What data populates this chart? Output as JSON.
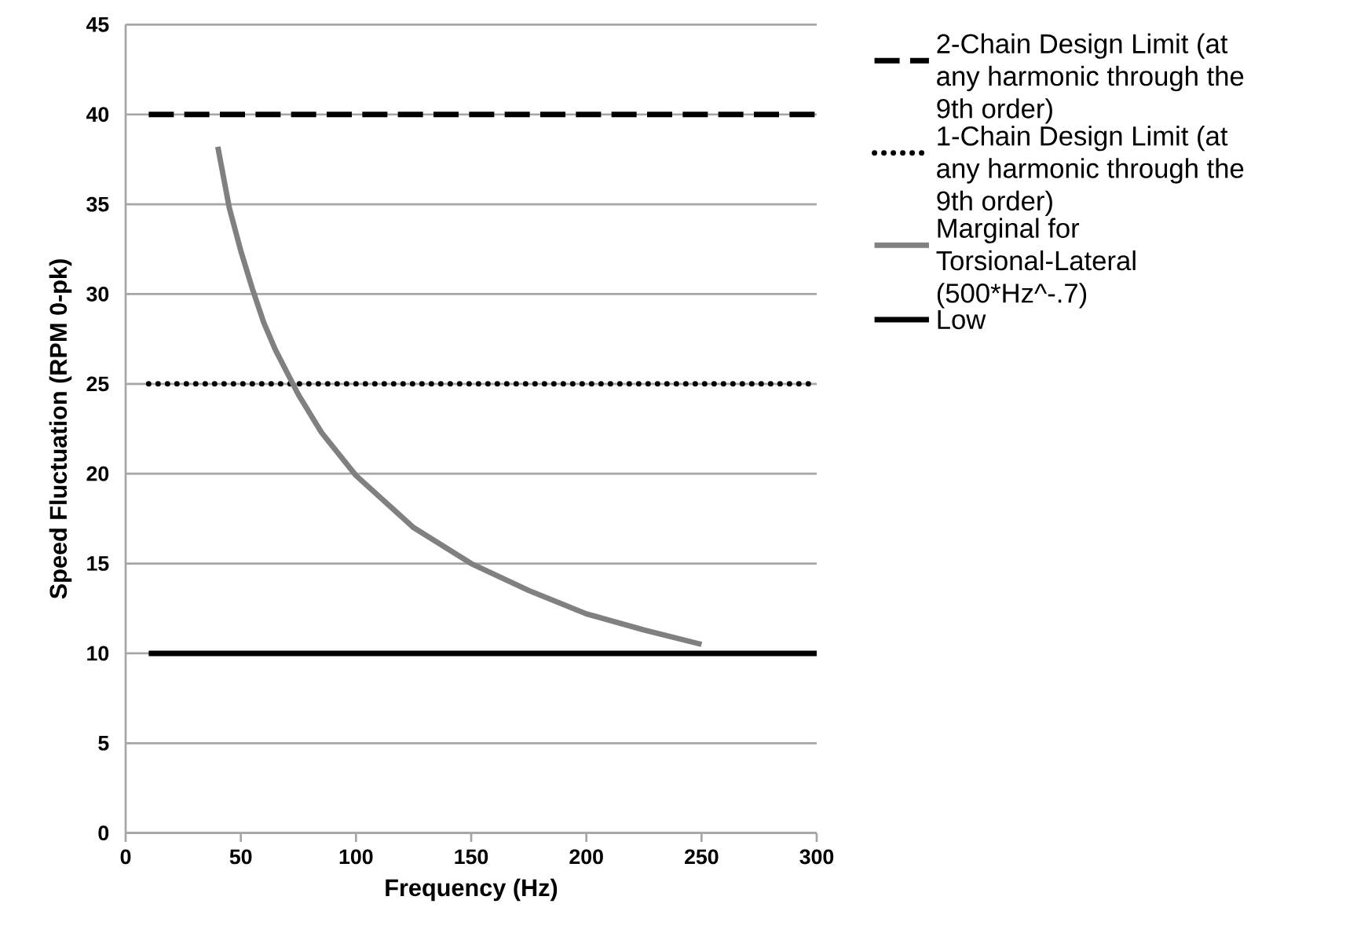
{
  "chart_data": {
    "type": "line",
    "xlabel": "Frequency (Hz)",
    "ylabel": "Speed Fluctuation (RPM 0-pk)",
    "xlim": [
      0,
      300
    ],
    "xticks": [
      0,
      50,
      100,
      150,
      200,
      250,
      300
    ],
    "ylim": [
      0,
      45
    ],
    "yticks": [
      0,
      5,
      10,
      15,
      20,
      25,
      30,
      35,
      40,
      45
    ],
    "grid": "y",
    "legend": "right",
    "marker": "none",
    "series": [
      {
        "name": "2-Chain Design Limit (at any harmonic through the 9th order)",
        "color": "#000000",
        "line_style": "dashed",
        "x": [
          10,
          300
        ],
        "values": [
          40,
          40
        ]
      },
      {
        "name": "1-Chain Design Limit (at any harmonic through the 9th order)",
        "color": "#000000",
        "line_style": "dotted",
        "x": [
          10,
          300
        ],
        "values": [
          25,
          25
        ]
      },
      {
        "name": "Marginal for Torsional-Lateral (500*Hz^-.7)",
        "color": "#808080",
        "line_style": "solid",
        "x": [
          40,
          45,
          50,
          55,
          60,
          65,
          75,
          85,
          100,
          125,
          150,
          175,
          200,
          225,
          250
        ],
        "values": [
          38.2,
          34.8,
          32.4,
          30.3,
          28.4,
          26.9,
          24.4,
          22.3,
          19.9,
          17.0,
          15.0,
          13.5,
          12.2,
          11.3,
          10.5
        ]
      },
      {
        "name": "Low",
        "color": "#000000",
        "line_style": "solid",
        "x": [
          10,
          300
        ],
        "values": [
          10,
          10
        ]
      }
    ]
  }
}
